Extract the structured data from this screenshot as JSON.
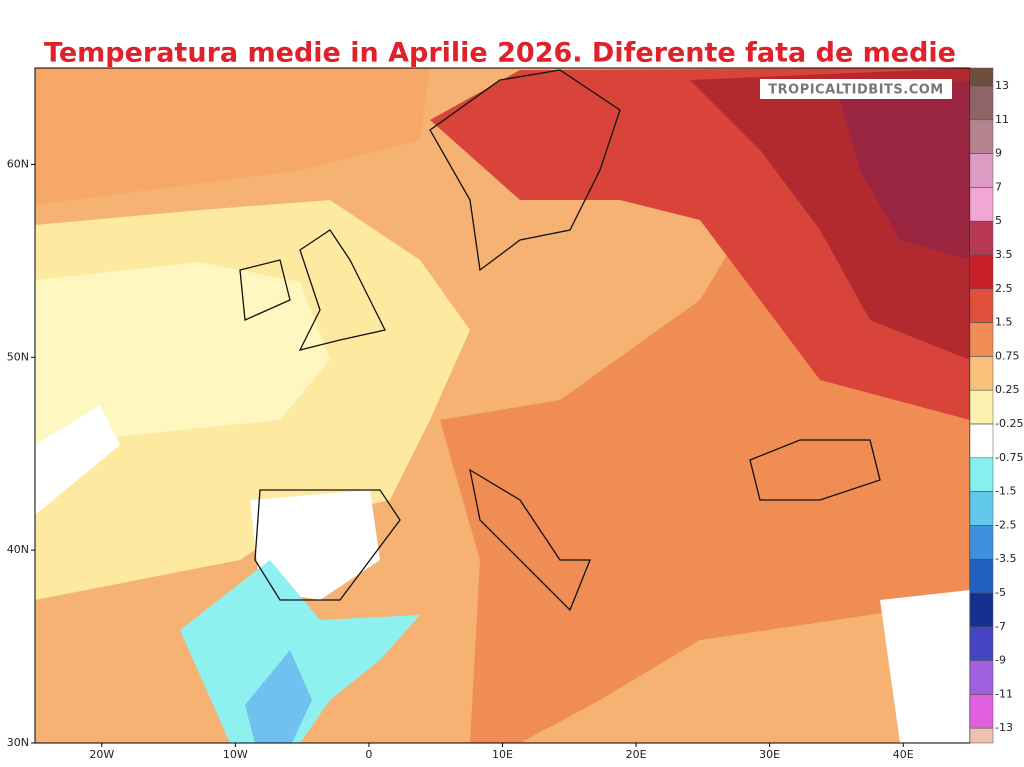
{
  "title": "Temperatura medie in Aprilie 2026. Diferente fata de medie",
  "watermark": "TROPICALTIDBITS.COM",
  "map": {
    "xlim": [
      -25,
      45
    ],
    "ylim": [
      30,
      65
    ],
    "xticks": [
      {
        "value": -20,
        "label": "20W"
      },
      {
        "value": -10,
        "label": "10W"
      },
      0,
      {
        "value": 10,
        "label": "10E"
      },
      {
        "value": 20,
        "label": "20E"
      },
      {
        "value": 30,
        "label": "30E"
      },
      {
        "value": 40,
        "label": "40E"
      }
    ],
    "yticks": [
      {
        "value": 60,
        "label": "60N"
      },
      {
        "value": 50,
        "label": "50N"
      },
      {
        "value": 40,
        "label": "40N"
      },
      {
        "value": 30,
        "label": "30N"
      }
    ]
  },
  "colorbar": {
    "ticks": [
      13,
      11,
      9,
      7,
      5,
      3.5,
      2.5,
      1.5,
      0.75,
      0.25,
      -0.25,
      -0.75,
      -1.5,
      -2.5,
      -3.5,
      -5,
      -7,
      -9,
      -11,
      -13
    ],
    "colors": [
      "#6e4f3f",
      "#8e6466",
      "#b5838f",
      "#dd9cc4",
      "#f2a6d4",
      "#b73850",
      "#c8202a",
      "#e0503a",
      "#f08c55",
      "#f8c07a",
      "#fdf1b0",
      "#ffffff",
      "#86f0f0",
      "#62c8ec",
      "#4090e0",
      "#2060c0",
      "#14308f",
      "#4545c4",
      "#a060e0",
      "#e060e0",
      "#f0c0b0"
    ]
  }
}
